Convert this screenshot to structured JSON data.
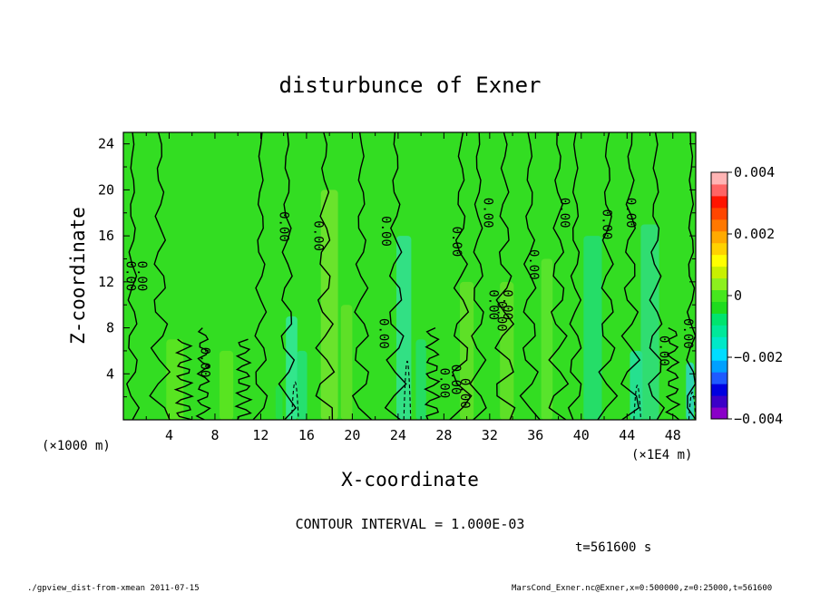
{
  "chart_data": {
    "type": "heatmap",
    "title": "disturbunce of Exner",
    "xlabel": "X-coordinate",
    "ylabel": "Z-coordinate",
    "x_unit_left": "(×1000 m)",
    "x_unit_right": "(×1E4 m)",
    "xlim": [
      0,
      50
    ],
    "ylim": [
      0,
      25
    ],
    "x_ticks": [
      4,
      8,
      12,
      16,
      20,
      24,
      28,
      32,
      36,
      40,
      44,
      48
    ],
    "y_ticks": [
      4,
      8,
      12,
      16,
      20,
      24
    ],
    "colorbar": {
      "range": [
        -0.004,
        0.004
      ],
      "tick_labels": [
        "0.004",
        "0.002",
        "0",
        "−0.002",
        "−0.004"
      ],
      "tick_values": [
        0.004,
        0.002,
        0,
        -0.002,
        -0.004
      ],
      "colors": [
        "#8a00c8",
        "#3c00c8",
        "#0000e0",
        "#1e5aff",
        "#00a0ff",
        "#00dcff",
        "#00e8c8",
        "#00e89a",
        "#00e46e",
        "#1edc1e",
        "#46e61e",
        "#8cf01e",
        "#c8f000",
        "#ffff00",
        "#ffd200",
        "#ffaa00",
        "#ff7800",
        "#ff4600",
        "#ff1400",
        "#ff6464",
        "#ffb4b4"
      ]
    },
    "contour_interval_text": "CONTOUR INTERVAL = 1.000E-03",
    "contour_labels": [
      {
        "x": 0.6,
        "y": 12.5,
        "text": "0.00"
      },
      {
        "x": 1.6,
        "y": 12.5,
        "text": "0.00"
      },
      {
        "x": 7.1,
        "y": 5.0,
        "text": "0.00"
      },
      {
        "x": 14.0,
        "y": 16.8,
        "text": "0.00"
      },
      {
        "x": 17.0,
        "y": 16.0,
        "text": "0.00"
      },
      {
        "x": 22.9,
        "y": 16.4,
        "text": "0.00"
      },
      {
        "x": 22.7,
        "y": 7.5,
        "text": "0.00"
      },
      {
        "x": 28.0,
        "y": 3.2,
        "text": "0.00"
      },
      {
        "x": 29.0,
        "y": 3.5,
        "text": "0.00"
      },
      {
        "x": 29.8,
        "y": 2.3,
        "text": "0.00"
      },
      {
        "x": 29.1,
        "y": 15.5,
        "text": "0.00"
      },
      {
        "x": 31.8,
        "y": 18.0,
        "text": "0.00"
      },
      {
        "x": 32.3,
        "y": 10.0,
        "text": "0.00"
      },
      {
        "x": 33.5,
        "y": 10.0,
        "text": "0.00"
      },
      {
        "x": 33.0,
        "y": 9.0,
        "text": "0.00"
      },
      {
        "x": 35.8,
        "y": 13.5,
        "text": "0.00"
      },
      {
        "x": 38.5,
        "y": 18.0,
        "text": "0.00"
      },
      {
        "x": 42.2,
        "y": 17.0,
        "text": "0.00"
      },
      {
        "x": 44.3,
        "y": 18.0,
        "text": "0.00"
      },
      {
        "x": 47.2,
        "y": 6.0,
        "text": "0.00"
      },
      {
        "x": 49.3,
        "y": 7.5,
        "text": "0.00"
      }
    ]
  },
  "time_label": "t=561600 s",
  "footer_left": "./gpview_dist-from-xmean  2011-07-15",
  "footer_right": "MarsCond_Exner.nc@Exner,x=0:500000,z=0:25000,t=561600"
}
